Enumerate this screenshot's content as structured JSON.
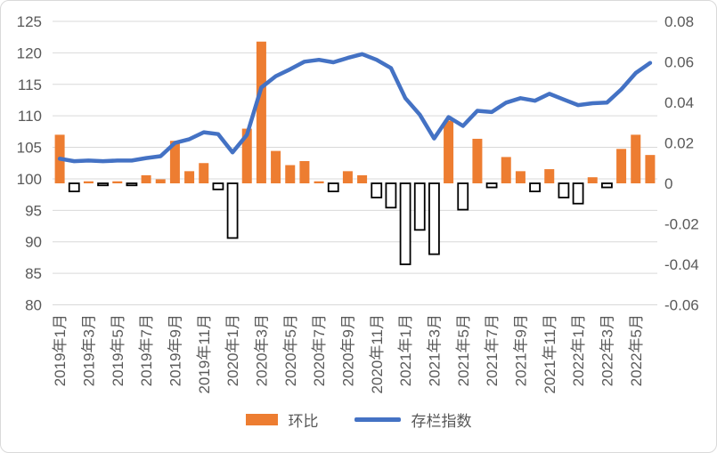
{
  "chart_data": {
    "type": "combo",
    "title": "",
    "x_categories": [
      "2019年1月",
      "2019年2月",
      "2019年3月",
      "2019年4月",
      "2019年5月",
      "2019年6月",
      "2019年7月",
      "2019年8月",
      "2019年9月",
      "2019年10月",
      "2019年11月",
      "2019年12月",
      "2020年1月",
      "2020年2月",
      "2020年3月",
      "2020年4月",
      "2020年5月",
      "2020年6月",
      "2020年7月",
      "2020年8月",
      "2020年9月",
      "2020年10月",
      "2020年11月",
      "2020年12月",
      "2021年1月",
      "2021年2月",
      "2021年3月",
      "2021年4月",
      "2021年5月",
      "2021年6月",
      "2021年7月",
      "2021年8月",
      "2021年9月",
      "2021年10月",
      "2021年11月",
      "2021年12月",
      "2022年1月",
      "2022年2月",
      "2022年3月",
      "2022年4月",
      "2022年5月",
      "2022年6月"
    ],
    "x_tick_every": 2,
    "series": [
      {
        "name": "环比",
        "type": "bar",
        "axis": "right",
        "color": "#ED7D31",
        "negative_fill": "#FFFFFF",
        "negative_stroke": "#000000",
        "values": [
          0.024,
          -0.004,
          0.001,
          -0.001,
          0.001,
          -0.001,
          0.004,
          0.002,
          0.021,
          0.006,
          0.01,
          -0.003,
          -0.027,
          0.027,
          0.07,
          0.016,
          0.009,
          0.011,
          0.001,
          -0.004,
          0.006,
          0.004,
          -0.007,
          -0.012,
          -0.04,
          -0.023,
          -0.035,
          0.031,
          -0.013,
          0.022,
          -0.002,
          0.013,
          0.006,
          -0.004,
          0.007,
          -0.007,
          -0.01,
          0.003,
          -0.002,
          0.017,
          0.024,
          0.014
        ]
      },
      {
        "name": "存栏指数",
        "type": "line",
        "axis": "left",
        "color": "#4472C4",
        "values": [
          103.2,
          102.8,
          102.9,
          102.8,
          102.9,
          102.9,
          103.3,
          103.6,
          105.7,
          106.3,
          107.4,
          107.1,
          104.2,
          107.0,
          114.5,
          116.3,
          117.4,
          118.6,
          118.9,
          118.5,
          119.2,
          119.8,
          118.9,
          117.6,
          112.8,
          110.2,
          106.4,
          109.8,
          108.4,
          110.8,
          110.6,
          112.1,
          112.8,
          112.4,
          113.5,
          112.6,
          111.7,
          112.0,
          112.1,
          114.2,
          116.8,
          118.4
        ]
      }
    ],
    "left_axis": {
      "min": 80,
      "max": 125,
      "step": 5,
      "tick_labels": [
        "80",
        "85",
        "90",
        "95",
        "100",
        "105",
        "110",
        "115",
        "120",
        "125"
      ]
    },
    "right_axis": {
      "min": -0.06,
      "max": 0.08,
      "step": 0.02,
      "tick_labels": [
        "-0.06",
        "-0.04",
        "-0.02",
        "0",
        "0.02",
        "0.04",
        "0.06",
        "0.08"
      ]
    },
    "grid": true,
    "grid_color": "#D9D9D9",
    "label_color": "#595959",
    "legend_position": "bottom"
  }
}
